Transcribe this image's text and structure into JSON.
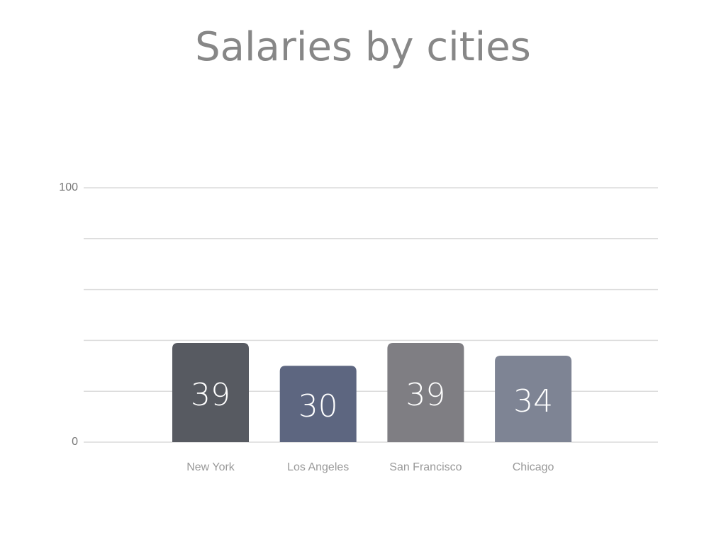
{
  "chart_data": {
    "type": "bar",
    "title": "Salaries by cities",
    "categories": [
      "New York",
      "Los Angeles",
      "San Francisco",
      "Chicago"
    ],
    "values": [
      39,
      30,
      39,
      34
    ],
    "colors": [
      "#575a61",
      "#5d6680",
      "#7f7e83",
      "#7e8494"
    ],
    "ylim": [
      0,
      100
    ],
    "yticks": [
      0,
      {
        "value": 20,
        "label": null
      },
      {
        "value": 40,
        "label": null
      },
      {
        "value": 60,
        "label": null
      },
      {
        "value": 80,
        "label": null
      },
      100
    ],
    "grid": true
  }
}
